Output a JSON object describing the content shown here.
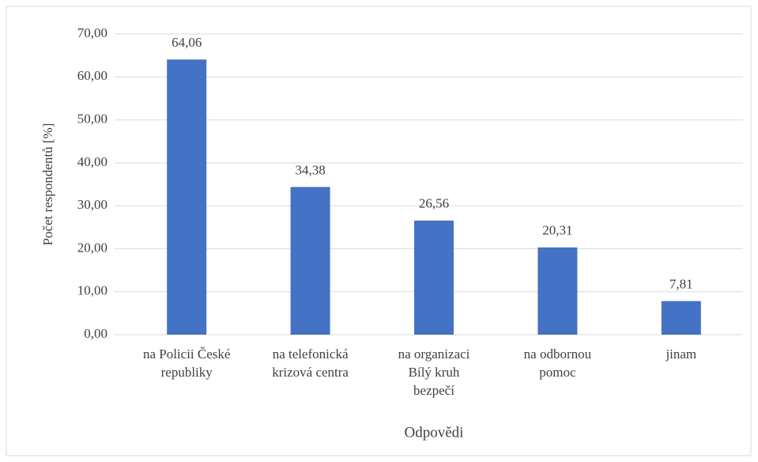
{
  "chart_data": {
    "type": "bar",
    "categories": [
      "na Policii České\nrepubliky",
      "na telefonická\nkrizová centra",
      "na organizaci\nBílý kruh\nbezpečí",
      "na odbornou\npomoc",
      "jinam"
    ],
    "values": [
      64.06,
      34.38,
      26.56,
      20.31,
      7.81
    ],
    "value_labels": [
      "64,06",
      "34,38",
      "26,56",
      "20,31",
      "7,81"
    ],
    "color": "#4472c4",
    "x_label": "Odpovědi",
    "y_label": "Počet respondentů [%]",
    "ylim": [
      0,
      70
    ],
    "yticks": [
      {
        "value": 0,
        "label": "0,00"
      },
      {
        "value": 10,
        "label": "10,00"
      },
      {
        "value": 20,
        "label": "20,00"
      },
      {
        "value": 30,
        "label": "30,00"
      },
      {
        "value": 40,
        "label": "40,00"
      },
      {
        "value": 50,
        "label": "50,00"
      },
      {
        "value": 60,
        "label": "60,00"
      },
      {
        "value": 70,
        "label": "70,00"
      }
    ],
    "grid": true
  }
}
